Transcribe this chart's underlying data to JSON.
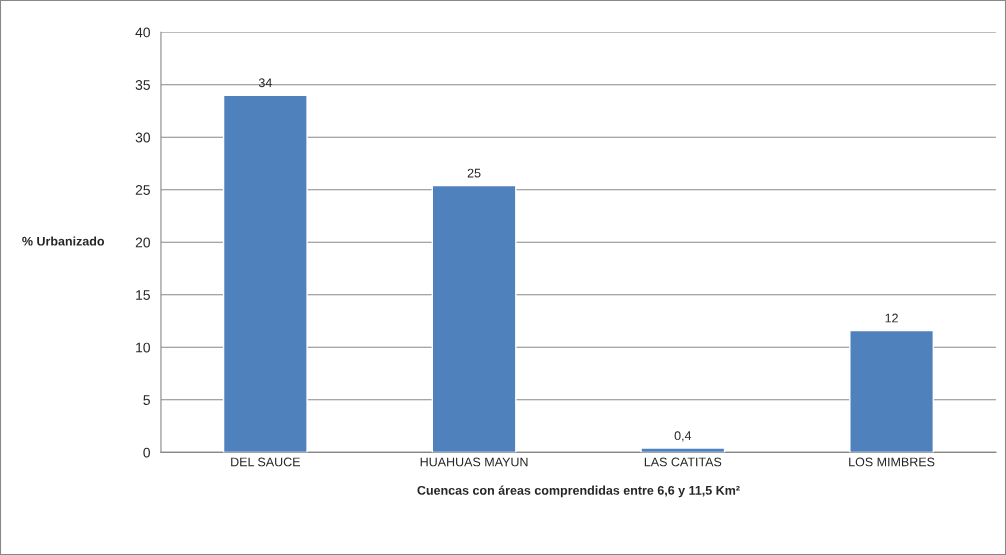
{
  "chart_data": {
    "type": "bar",
    "categories": [
      "DEL SAUCE",
      "HUAHUAS MAYUN",
      "LAS CATITAS",
      "LOS MIMBRES"
    ],
    "values": [
      34,
      25.4,
      0.4,
      11.6
    ],
    "value_labels": [
      "34",
      "25",
      "0,4",
      "12"
    ],
    "color": "#4f81bd",
    "xlabel": "Cuencas con áreas comprendidas entre 6,6 y 11,5 Km²",
    "ylabel": "% Urbanizado",
    "ylim": [
      0,
      40
    ],
    "yticks": [
      0,
      5,
      10,
      15,
      20,
      25,
      30,
      35,
      40
    ],
    "grid": "y",
    "legend": false
  }
}
